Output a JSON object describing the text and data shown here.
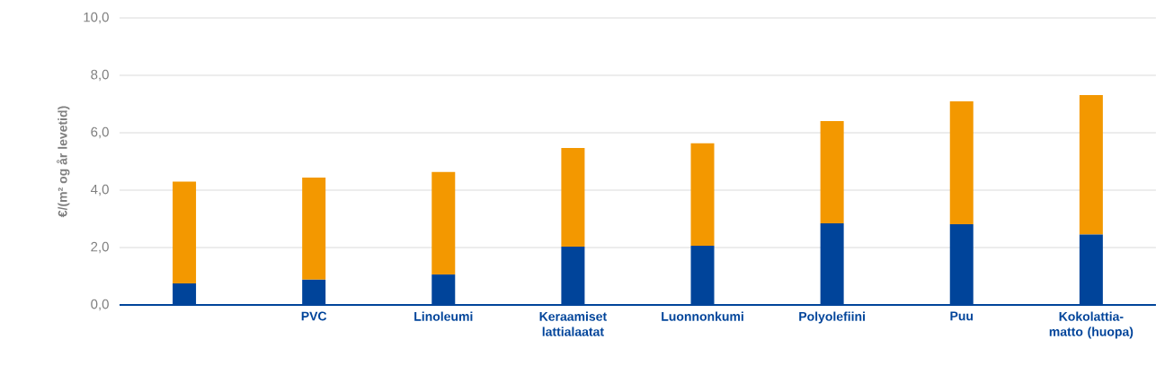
{
  "chart_data": {
    "type": "bar",
    "stacked": true,
    "ylabel": "€/(m² og år levetid)",
    "categories": [
      null,
      "PVC",
      "Linoleumi",
      "Keraamiset lattialaatat",
      "Luonnonkumi",
      "Polyolefiini",
      "Puu",
      "Kokolattia-matto (huopa)"
    ],
    "series": [
      {
        "color": "#00449a",
        "values": [
          0.75,
          0.88,
          1.06,
          2.03,
          2.06,
          2.84,
          2.81,
          2.45
        ]
      },
      {
        "color": "#f39800",
        "values": [
          3.55,
          3.56,
          3.57,
          3.44,
          3.57,
          3.57,
          4.28,
          4.86
        ]
      }
    ],
    "ylim": [
      0,
      10
    ],
    "yticks": [
      {
        "value": 0,
        "label": "0,0"
      },
      {
        "value": 2,
        "label": "2,0"
      },
      {
        "value": 4,
        "label": "4,0"
      },
      {
        "value": 6,
        "label": "6,0"
      },
      {
        "value": 8,
        "label": "8,0"
      },
      {
        "value": 10,
        "label": "10,0"
      }
    ],
    "grid": "y",
    "legend": false
  }
}
